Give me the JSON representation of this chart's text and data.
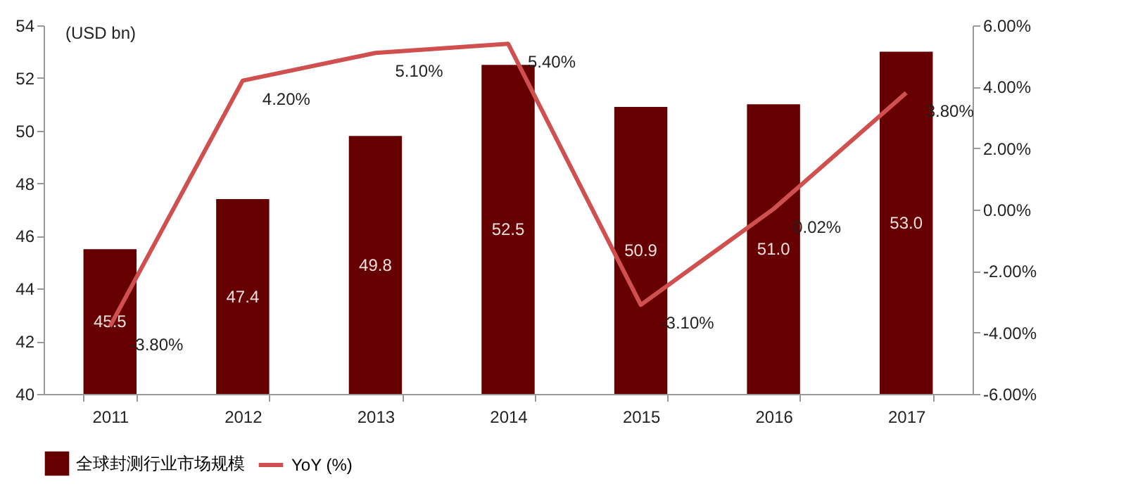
{
  "chart_data": {
    "type": "bar",
    "ylabel": "(USD bn)",
    "categories": [
      "2011",
      "2012",
      "2013",
      "2014",
      "2015",
      "2016",
      "2017"
    ],
    "series": [
      {
        "name": "全球封测行业市场规模",
        "color": "#660000",
        "values": [
          45.5,
          47.4,
          49.8,
          52.5,
          50.9,
          51.0,
          53.0
        ],
        "value_labels": [
          "45.5",
          "47.4",
          "49.8",
          "52.5",
          "50.9",
          "51.0",
          "53.0"
        ]
      },
      {
        "name": "YoY (%)",
        "type": "line",
        "axis": "y2",
        "color": "#d05050",
        "values": [
          -3.8,
          4.2,
          5.1,
          5.4,
          -3.1,
          0.02,
          3.8
        ],
        "value_labels": [
          "-3.80%",
          "4.20%",
          "5.10%",
          "5.40%",
          "-3.10%",
          "0.02%",
          "3.80%"
        ]
      }
    ],
    "ylim": [
      40,
      54
    ],
    "yticks": [
      40,
      42,
      44,
      46,
      48,
      50,
      52,
      54
    ],
    "y2lim": [
      -6,
      6
    ],
    "y2ticks": [
      {
        "value": -6,
        "label": "-6.00%"
      },
      {
        "value": -4,
        "label": "-4.00%"
      },
      {
        "value": -2,
        "label": "-2.00%"
      },
      {
        "value": 0,
        "label": "0.00%"
      },
      {
        "value": 2,
        "label": "2.00%"
      },
      {
        "value": 4,
        "label": "4.00%"
      },
      {
        "value": 6,
        "label": "6.00%"
      }
    ],
    "grid": false,
    "legend": "bottom"
  }
}
